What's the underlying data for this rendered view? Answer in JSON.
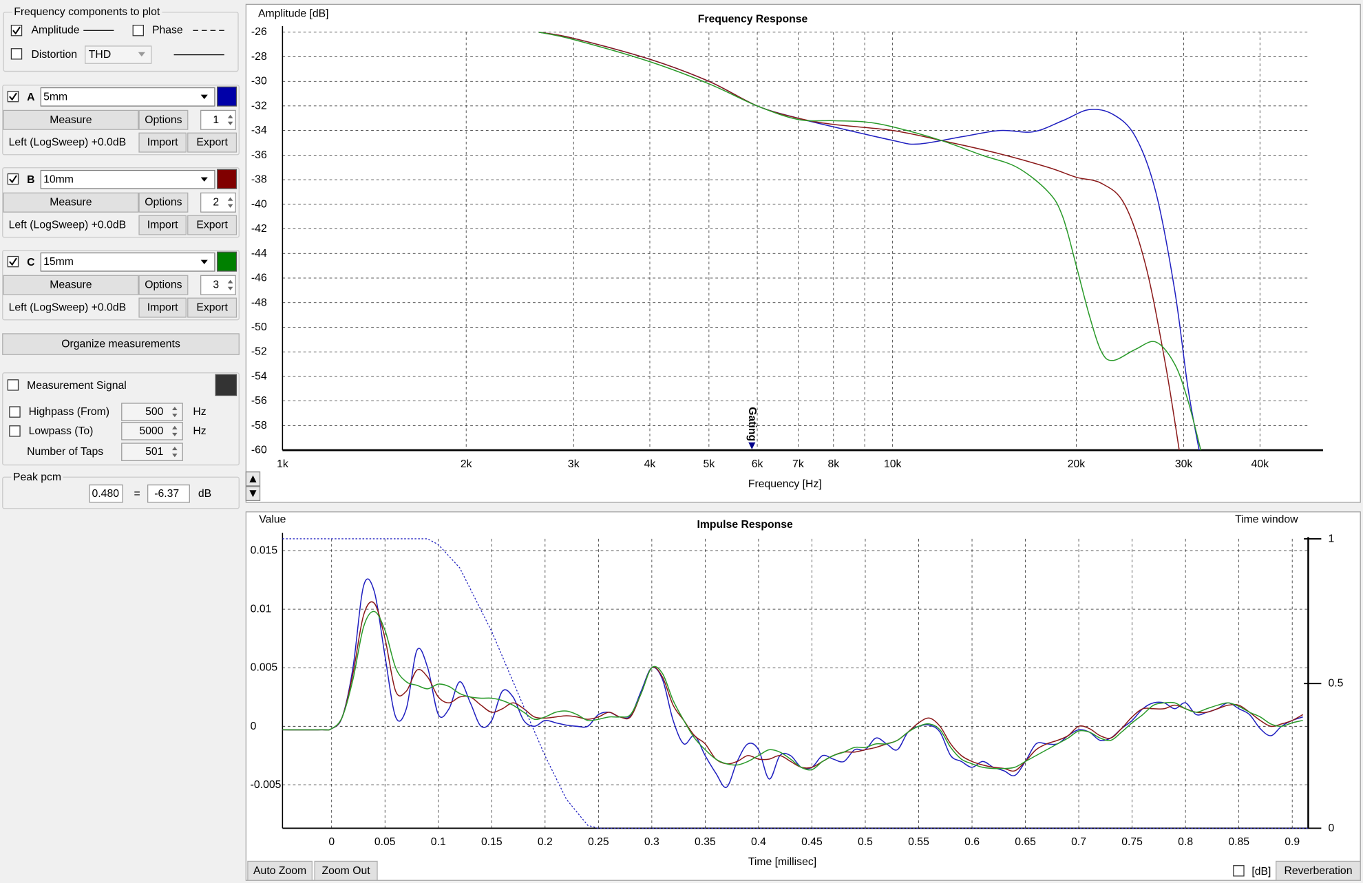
{
  "frequency_components": {
    "title": "Frequency components to plot",
    "amplitude": {
      "label": "Amplitude",
      "checked": true
    },
    "phase": {
      "label": "Phase",
      "checked": false
    },
    "distortion": {
      "label": "Distortion",
      "checked": false,
      "select": "THD"
    }
  },
  "measurements": [
    {
      "letter": "A",
      "name": "5mm",
      "color": "#0000a8",
      "checked": true,
      "measure": "Measure",
      "options": "Options",
      "number": 1,
      "source": "Left (LogSweep) +0.0dB",
      "import": "Import",
      "export": "Export"
    },
    {
      "letter": "B",
      "name": "10mm",
      "color": "#800000",
      "checked": true,
      "measure": "Measure",
      "options": "Options",
      "number": 2,
      "source": "Left (LogSweep) +0.0dB",
      "import": "Import",
      "export": "Export"
    },
    {
      "letter": "C",
      "name": "15mm",
      "color": "#008000",
      "checked": true,
      "measure": "Measure",
      "options": "Options",
      "number": 3,
      "source": "Left (LogSweep) +0.0dB",
      "import": "Import",
      "export": "Export"
    }
  ],
  "organize": "Organize measurements",
  "signal": {
    "label": "Measurement Signal",
    "checked": false,
    "color": "#333333",
    "highpass": {
      "label": "Highpass (From)",
      "checked": false,
      "value": 500,
      "unit": "Hz"
    },
    "lowpass": {
      "label": "Lowpass (To)",
      "checked": false,
      "value": 5000,
      "unit": "Hz"
    },
    "taps": {
      "label": "Number of Taps",
      "value": 501
    }
  },
  "peak": {
    "label": "Peak pcm",
    "pcm": "0.480",
    "equals": "=",
    "db": "-6.37",
    "unit": "dB"
  },
  "buttons": {
    "auto_zoom": "Auto Zoom",
    "zoom_out": "Zoom Out",
    "db": "[dB]",
    "db_checked": false,
    "reverberation": "Reverberation"
  },
  "chart_data": [
    {
      "type": "line",
      "title": "Frequency Response",
      "ylabel": "Amplitude [dB]",
      "xlabel": "Frequency [Hz]",
      "xscale": "log",
      "xlim": [
        1000,
        48000
      ],
      "ylim": [
        -60,
        -26
      ],
      "grid": true,
      "xticks": [
        {
          "value": 1000,
          "label": "1k"
        },
        {
          "value": 2000,
          "label": "2k"
        },
        {
          "value": 3000,
          "label": "3k"
        },
        {
          "value": 4000,
          "label": "4k"
        },
        {
          "value": 5000,
          "label": "5k"
        },
        {
          "value": 6000,
          "label": "6k"
        },
        {
          "value": 7000,
          "label": "7k"
        },
        {
          "value": 8000,
          "label": "8k"
        },
        {
          "value": 10000,
          "label": "10k"
        },
        {
          "value": 20000,
          "label": "20k"
        },
        {
          "value": 30000,
          "label": "30k"
        },
        {
          "value": 40000,
          "label": "40k"
        }
      ],
      "minor_xticks": [
        9000
      ],
      "yticks": [
        -60,
        -58,
        -56,
        -54,
        -52,
        -50,
        -48,
        -46,
        -44,
        -42,
        -40,
        -38,
        -36,
        -34,
        -32,
        -30,
        -28,
        -26
      ],
      "gating": {
        "label": "Gating",
        "x": 5880
      },
      "series": [
        {
          "color": "#2020c0",
          "x": [
            2630,
            3000,
            4000,
            5000,
            6000,
            7000,
            8000,
            10000,
            11000,
            13000,
            15000,
            17000,
            19000,
            21000,
            23000,
            25000,
            27000,
            29000,
            30500,
            31800
          ],
          "values": [
            -26,
            -26.5,
            -28.2,
            -30,
            -32,
            -33,
            -33.7,
            -34.8,
            -35.1,
            -34.5,
            -34,
            -34.1,
            -33.2,
            -32.3,
            -32.7,
            -34.5,
            -39,
            -47,
            -55,
            -60
          ]
        },
        {
          "color": "#8b1a1a",
          "x": [
            2630,
            3000,
            4000,
            5000,
            6000,
            7000,
            8000,
            10000,
            12000,
            15000,
            18000,
            20000,
            22000,
            24000,
            26000,
            28000,
            29500
          ],
          "values": [
            -26,
            -26.5,
            -28.2,
            -30,
            -32,
            -33,
            -33.5,
            -34,
            -34.8,
            -35.9,
            -37,
            -37.8,
            -38.3,
            -40,
            -45,
            -53,
            -60
          ]
        },
        {
          "color": "#2a9a2a",
          "x": [
            2630,
            3000,
            4000,
            5000,
            6000,
            7000,
            8000,
            9000,
            10000,
            12000,
            14000,
            16000,
            18000,
            19000,
            20000,
            21000,
            22000,
            23000,
            25000,
            27000,
            29000,
            30500,
            32000
          ],
          "values": [
            -26,
            -26.6,
            -28.4,
            -30.2,
            -32,
            -33.1,
            -33.2,
            -33.3,
            -33.7,
            -34.8,
            -36,
            -37,
            -39,
            -41,
            -45,
            -49,
            -52,
            -52.7,
            -51.8,
            -51.2,
            -53,
            -56,
            -60
          ]
        }
      ]
    },
    {
      "type": "line",
      "title": "Impulse Response",
      "ylabel": "Value",
      "xlabel": "Time [millisec]",
      "y2label": "Time window",
      "xlim": [
        -0.046,
        0.915
      ],
      "ylim": [
        -0.0087,
        0.016
      ],
      "y2lim": [
        0,
        1
      ],
      "grid": true,
      "xticks": [
        0,
        0.05,
        0.1,
        0.15,
        0.2,
        0.25,
        0.3,
        0.35,
        0.4,
        0.45,
        0.5,
        0.55,
        0.6,
        0.65,
        0.7,
        0.75,
        0.8,
        0.85,
        0.9
      ],
      "yticks": [
        -0.005,
        0,
        0.005,
        0.01,
        0.015
      ],
      "y2ticks": [
        0,
        0.5,
        1
      ],
      "x": [
        -0.046,
        -0.01,
        0,
        0.01,
        0.02,
        0.03,
        0.04,
        0.05,
        0.06,
        0.07,
        0.08,
        0.09,
        0.1,
        0.11,
        0.12,
        0.13,
        0.14,
        0.15,
        0.16,
        0.17,
        0.18,
        0.19,
        0.2,
        0.21,
        0.22,
        0.23,
        0.24,
        0.25,
        0.26,
        0.27,
        0.28,
        0.29,
        0.3,
        0.31,
        0.32,
        0.33,
        0.34,
        0.35,
        0.36,
        0.37,
        0.38,
        0.39,
        0.4,
        0.41,
        0.42,
        0.43,
        0.44,
        0.45,
        0.46,
        0.47,
        0.48,
        0.49,
        0.5,
        0.51,
        0.52,
        0.53,
        0.54,
        0.55,
        0.56,
        0.57,
        0.58,
        0.59,
        0.6,
        0.61,
        0.62,
        0.63,
        0.64,
        0.65,
        0.66,
        0.67,
        0.68,
        0.69,
        0.7,
        0.71,
        0.72,
        0.73,
        0.74,
        0.75,
        0.76,
        0.77,
        0.78,
        0.79,
        0.8,
        0.81,
        0.82,
        0.83,
        0.84,
        0.85,
        0.86,
        0.87,
        0.88,
        0.89,
        0.9,
        0.91
      ],
      "series": [
        {
          "color": "#2020c0",
          "values": [
            -0.0003,
            -0.0003,
            -0.0002,
            0.0008,
            0.005,
            0.012,
            0.0115,
            0.006,
            0.0008,
            0.0015,
            0.0065,
            0.005,
            0.001,
            0.0015,
            0.0038,
            0.002,
            0.0,
            0.0005,
            0.003,
            0.0025,
            0.0005,
            0.0,
            0.0005,
            0.0003,
            0.0001,
            0.0,
            0.0,
            0.001,
            0.0012,
            0.0008,
            0.0009,
            0.003,
            0.005,
            0.004,
            0.0005,
            -0.0015,
            -0.0008,
            -0.0025,
            -0.004,
            -0.0052,
            -0.003,
            -0.0015,
            -0.002,
            -0.0045,
            -0.0025,
            -0.0025,
            -0.0035,
            -0.0035,
            -0.0025,
            -0.0028,
            -0.003,
            -0.002,
            -0.002,
            -0.001,
            -0.0015,
            -0.002,
            -0.0005,
            0.0,
            0.0001,
            -0.0005,
            -0.0025,
            -0.003,
            -0.0035,
            -0.003,
            -0.0035,
            -0.0038,
            -0.0042,
            -0.003,
            -0.0015,
            -0.0015,
            -0.0015,
            -0.0008,
            -0.0003,
            -0.0005,
            -0.0012,
            -0.001,
            -0.0002,
            0.0005,
            0.0015,
            0.002,
            0.002,
            0.0015,
            0.002,
            0.001,
            0.0012,
            0.0015,
            0.002,
            0.0015,
            0.001,
            -0.0002,
            -0.0008,
            0.0,
            0.0005,
            0.0008
          ]
        },
        {
          "color": "#8b1a1a",
          "values": [
            -0.0003,
            -0.0003,
            -0.0002,
            0.0008,
            0.0045,
            0.0095,
            0.0105,
            0.0075,
            0.003,
            0.003,
            0.0048,
            0.0042,
            0.0025,
            0.002,
            0.0025,
            0.0025,
            0.0018,
            0.0012,
            0.0015,
            0.002,
            0.0015,
            0.0008,
            0.0007,
            0.0008,
            0.0009,
            0.0008,
            0.0006,
            0.0008,
            0.0012,
            0.0008,
            0.0008,
            0.0028,
            0.005,
            0.0042,
            0.0018,
            0.0005,
            -0.0008,
            -0.0015,
            -0.0028,
            -0.0032,
            -0.003,
            -0.0025,
            -0.0028,
            -0.0028,
            -0.0025,
            -0.003,
            -0.0035,
            -0.0035,
            -0.003,
            -0.0025,
            -0.0022,
            -0.0022,
            -0.002,
            -0.0018,
            -0.0015,
            -0.0012,
            -0.0005,
            0.0003,
            0.0007,
            0.0,
            -0.0015,
            -0.0025,
            -0.003,
            -0.0033,
            -0.0035,
            -0.0036,
            -0.0038,
            -0.003,
            -0.002,
            -0.0015,
            -0.0012,
            -0.0008,
            0.0,
            -0.0002,
            -0.0008,
            -0.001,
            -0.0002,
            0.0008,
            0.0015,
            0.0015,
            0.0015,
            0.0018,
            0.0015,
            0.0012,
            0.0012,
            0.0015,
            0.0018,
            0.0018,
            0.0012,
            0.0005,
            0.0,
            0.0002,
            0.0005,
            0.001
          ]
        },
        {
          "color": "#2a9a2a",
          "values": [
            -0.0003,
            -0.0003,
            -0.0002,
            0.0008,
            0.004,
            0.0085,
            0.0098,
            0.0082,
            0.005,
            0.0038,
            0.0035,
            0.0032,
            0.0036,
            0.0034,
            0.0028,
            0.0025,
            0.0024,
            0.0024,
            0.0022,
            0.0018,
            0.0012,
            0.0006,
            0.0008,
            0.0012,
            0.0013,
            0.001,
            0.0005,
            0.0006,
            0.0008,
            0.0008,
            0.001,
            0.0028,
            0.005,
            0.0045,
            0.0022,
            0.0005,
            -0.001,
            -0.002,
            -0.0028,
            -0.0032,
            -0.0033,
            -0.003,
            -0.0025,
            -0.002,
            -0.0022,
            -0.0028,
            -0.0035,
            -0.0037,
            -0.003,
            -0.0025,
            -0.0022,
            -0.0018,
            -0.0018,
            -0.0015,
            -0.0015,
            -0.0012,
            -0.0005,
            0.0,
            0.0002,
            -0.0003,
            -0.0018,
            -0.0028,
            -0.0032,
            -0.0035,
            -0.0036,
            -0.0036,
            -0.0035,
            -0.003,
            -0.0025,
            -0.002,
            -0.0015,
            -0.001,
            -0.0004,
            -0.0005,
            -0.001,
            -0.0012,
            -0.0005,
            0.0003,
            0.001,
            0.0018,
            0.002,
            0.002,
            0.0015,
            0.0012,
            0.0015,
            0.0018,
            0.002,
            0.0017,
            0.0012,
            0.0008,
            0.0002,
            0.0,
            0.0003,
            0.0005
          ]
        },
        {
          "color": "#2020c0",
          "axis": "y2",
          "dashed": true,
          "x": [
            -0.046,
            0.09,
            0.1,
            0.12,
            0.15,
            0.18,
            0.2,
            0.22,
            0.24,
            0.25,
            0.915
          ],
          "values": [
            1,
            1,
            0.98,
            0.9,
            0.68,
            0.42,
            0.25,
            0.1,
            0.01,
            0,
            0
          ]
        }
      ]
    }
  ]
}
